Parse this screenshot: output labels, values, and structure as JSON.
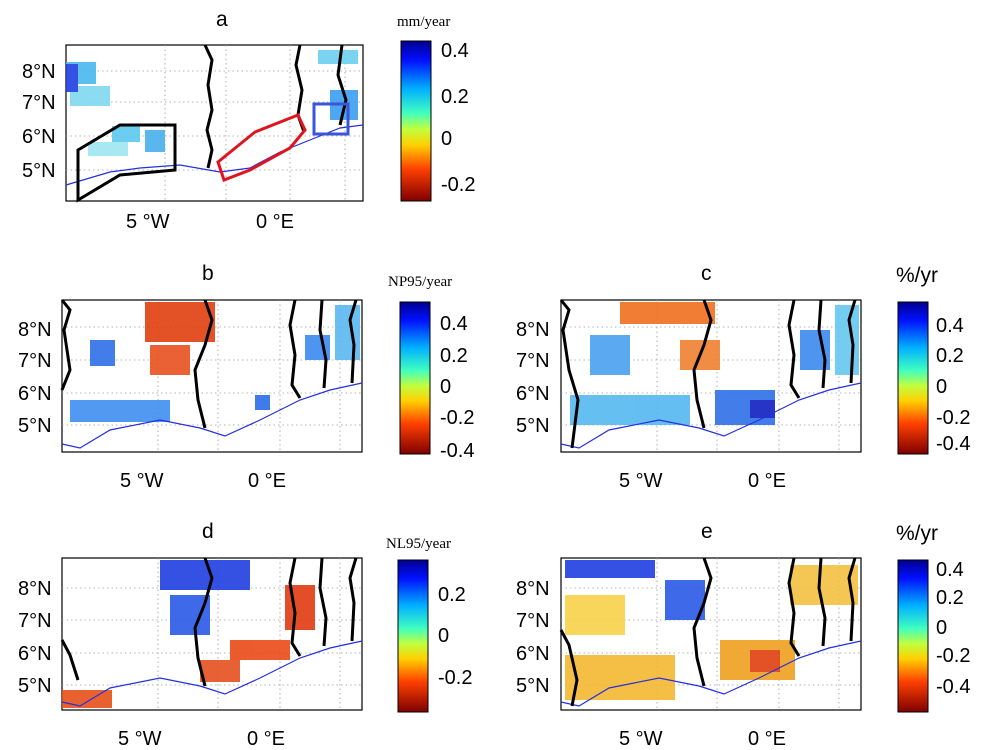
{
  "panels": [
    {
      "id": "a",
      "title": "a",
      "unit": "mm/year",
      "lat_ticks": [
        "8°N",
        "7°N",
        "6°N",
        "5°N"
      ],
      "lon_ticks": [
        "5 °W",
        "0 °E"
      ],
      "colorbar": {
        "ticks": [
          "0.4",
          "0.2",
          "0",
          "-0.2"
        ],
        "range": [
          -0.28,
          0.44
        ]
      },
      "highlight_regions": [
        {
          "name": "black-outline-region",
          "color": "#000000"
        },
        {
          "name": "red-outline-region",
          "color": "#e0141e"
        },
        {
          "name": "blue-box-region",
          "color": "#3a55d8"
        }
      ]
    },
    {
      "id": "b",
      "title": "b",
      "unit": "NP95/year",
      "lat_ticks": [
        "8°N",
        "7°N",
        "6°N",
        "5°N"
      ],
      "lon_ticks": [
        "5 °W",
        "0 °E"
      ],
      "colorbar": {
        "ticks": [
          "0.4",
          "0.2",
          "0",
          "-0.2",
          "-0.4"
        ],
        "range": [
          -0.45,
          0.5
        ]
      }
    },
    {
      "id": "c",
      "title": "c",
      "unit": "%/yr",
      "lat_ticks": [
        "8°N",
        "7°N",
        "6°N",
        "5°N"
      ],
      "lon_ticks": [
        "5 °W",
        "0 °E"
      ],
      "colorbar": {
        "ticks": [
          "0.4",
          "0.2",
          "0",
          "-0.2",
          "-0.4"
        ],
        "range": [
          -0.55,
          0.55
        ]
      }
    },
    {
      "id": "d",
      "title": "d",
      "unit": "NL95/year",
      "lat_ticks": [
        "8°N",
        "7°N",
        "6°N",
        "5°N"
      ],
      "lon_ticks": [
        "5 °W",
        "0 °E"
      ],
      "colorbar": {
        "ticks": [
          "0.2",
          "0",
          "-0.2"
        ],
        "range": [
          -0.35,
          0.35
        ]
      }
    },
    {
      "id": "e",
      "title": "e",
      "unit": "%/yr",
      "lat_ticks": [
        "8°N",
        "7°N",
        "6°N",
        "5°N"
      ],
      "lon_ticks": [
        "5 °W",
        "0 °E"
      ],
      "colorbar": {
        "ticks": [
          "0.4",
          "0.2",
          "0",
          "-0.2",
          "-0.4"
        ],
        "range": [
          -0.55,
          0.45
        ]
      }
    }
  ],
  "colors": {
    "coastline": "#2430e0",
    "borders": "#000000",
    "grid": "#9a9a9a"
  }
}
